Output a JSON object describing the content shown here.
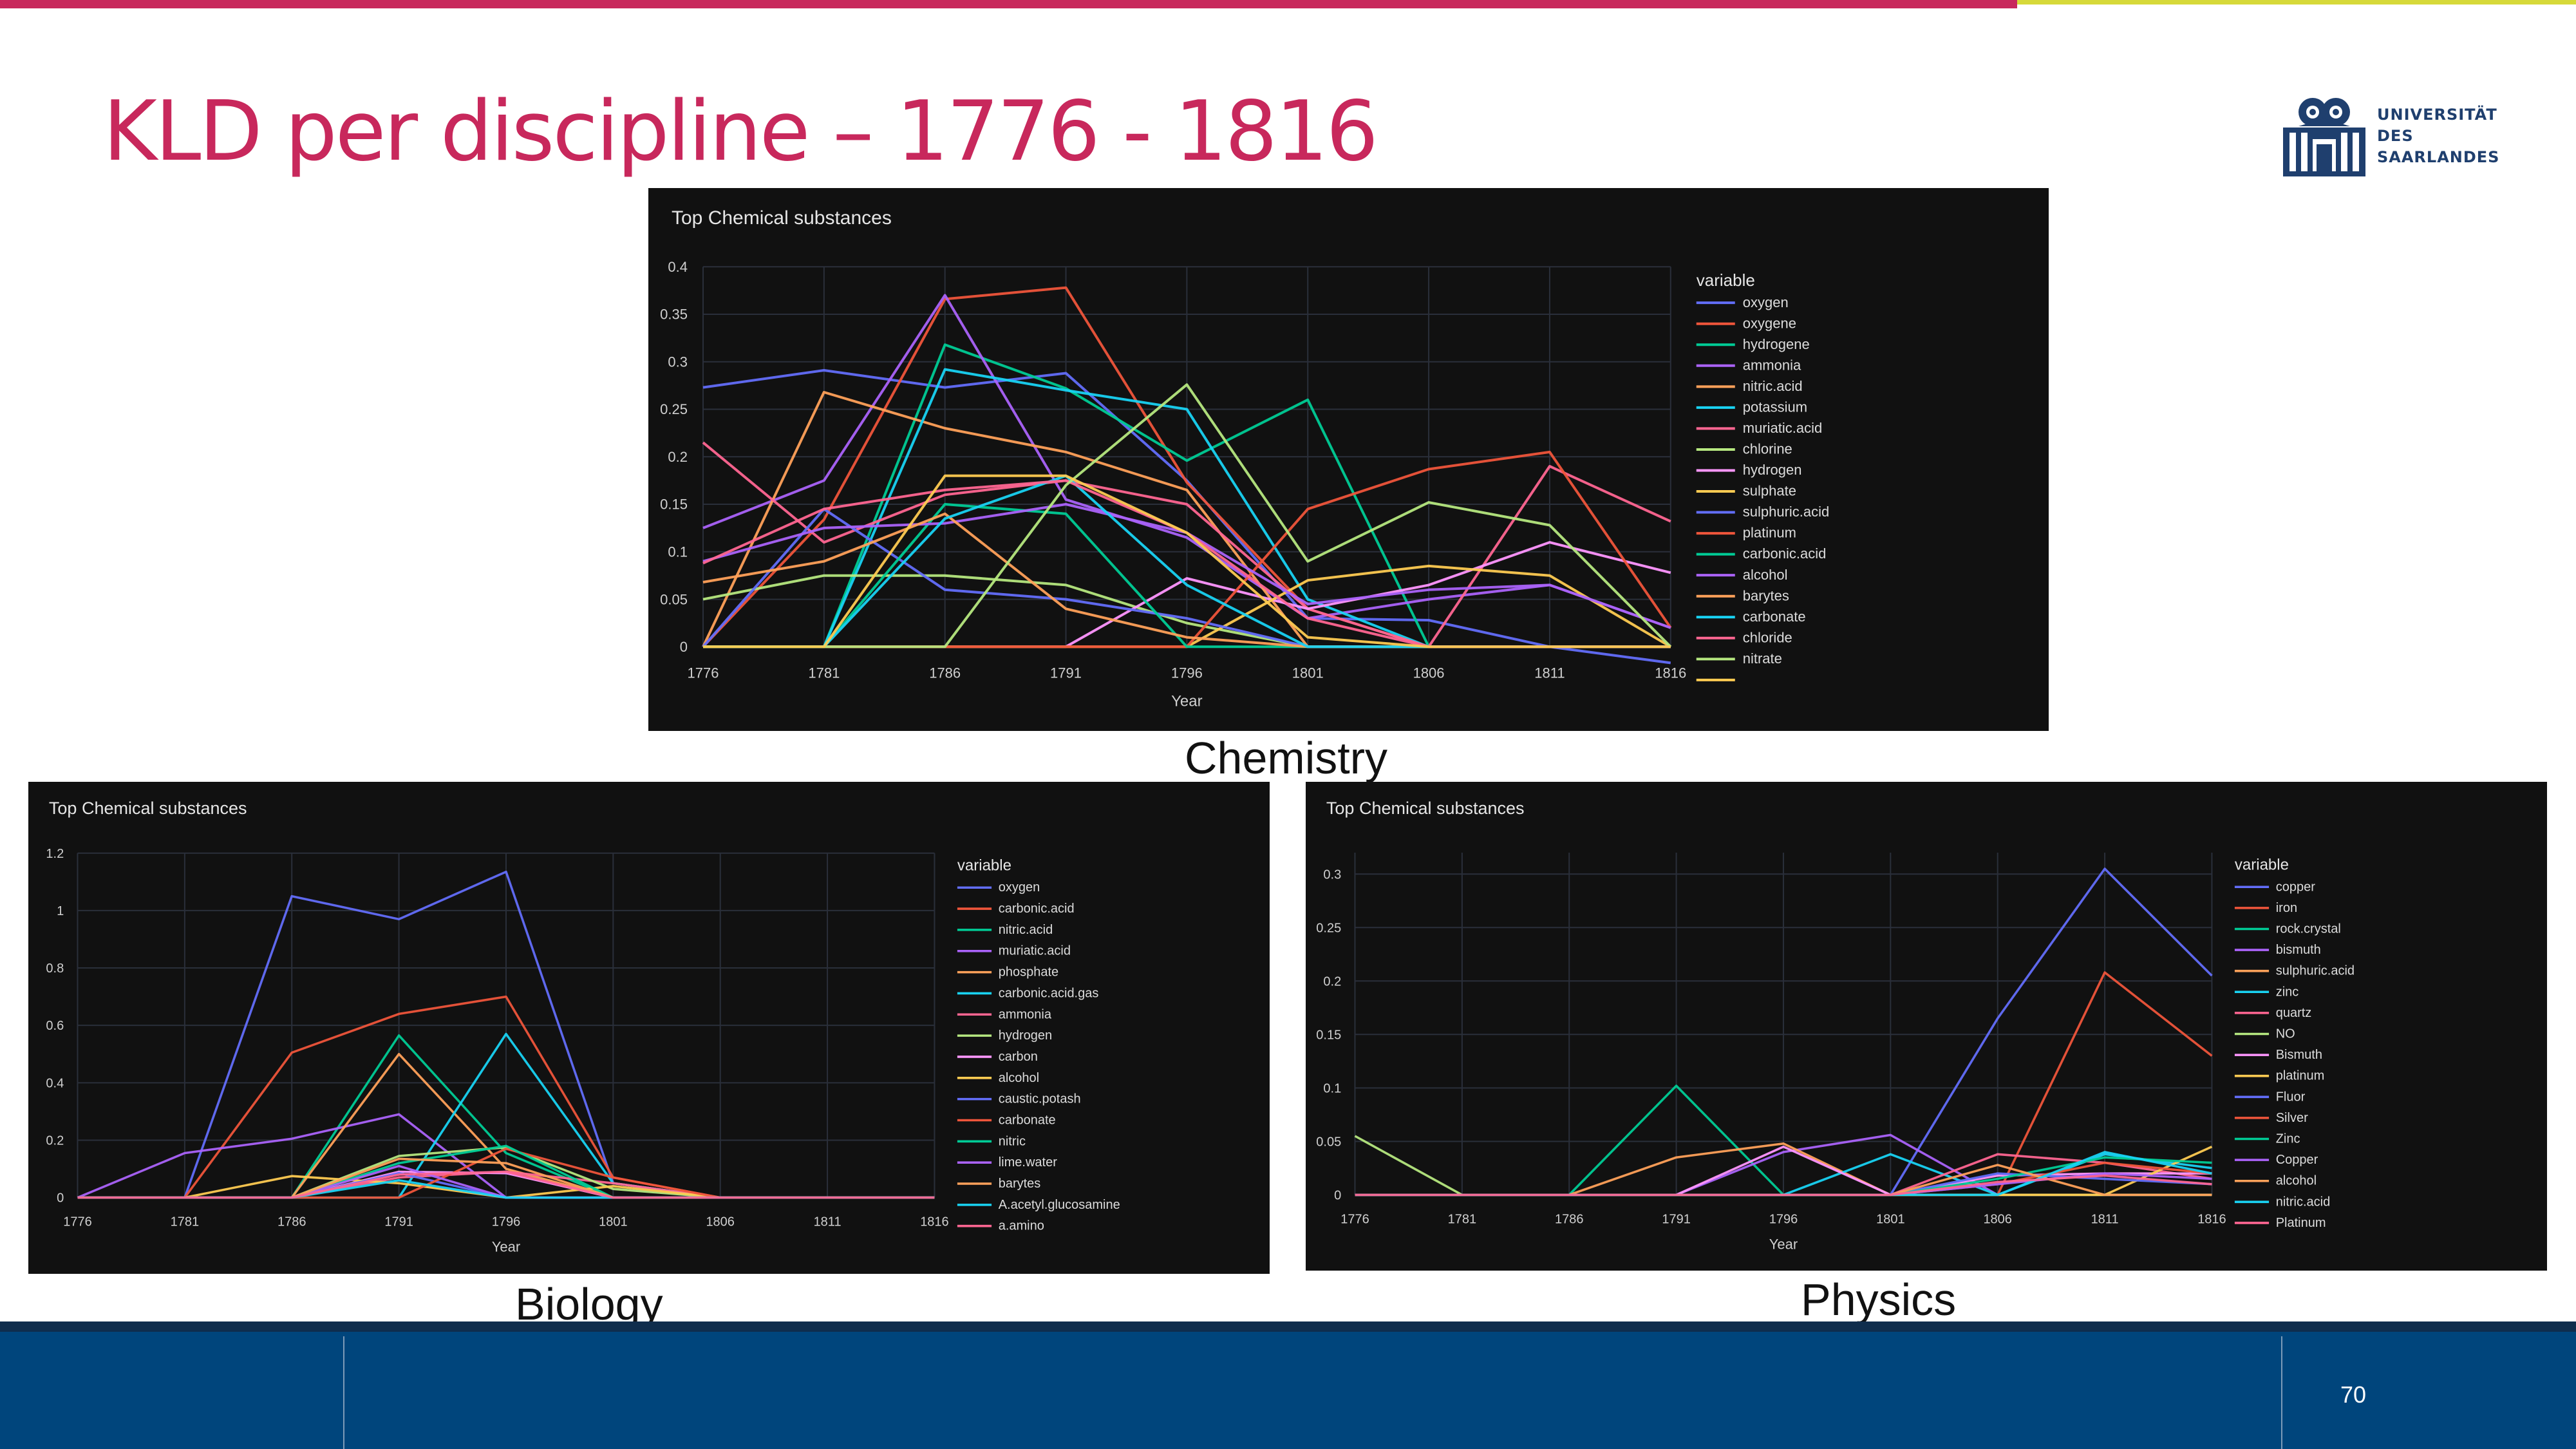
{
  "slide": {
    "title": "KLD per discipline – 1776 - 1816",
    "page_number": "70",
    "accent_color": "#c8285c",
    "secondary_accent_color": "#d6d93a",
    "footer_color": "#00457c"
  },
  "logo": {
    "lines": [
      "UNIVERSITÄT",
      "DES",
      "SAARLANDES"
    ],
    "icon": "saarland-university-seal-icon"
  },
  "captions": {
    "chemistry": "Chemistry",
    "biology": "Biology",
    "physics": "Physics"
  },
  "chart_data": [
    {
      "id": "chemistry",
      "type": "line",
      "title": "Top Chemical substances",
      "xlabel": "Year",
      "ylabel": "",
      "legend_title": "variable",
      "legend_position": "right",
      "grid": true,
      "x": [
        1776,
        1781,
        1786,
        1791,
        1796,
        1801,
        1806,
        1811,
        1816
      ],
      "xticks": [
        "1776",
        "1781",
        "1786",
        "1791",
        "1796",
        "1801",
        "1806",
        "1811",
        "1816"
      ],
      "ylim": [
        0,
        0.4
      ],
      "yticks": [
        0,
        0.05,
        0.1,
        0.15,
        0.2,
        0.25,
        0.3,
        0.35,
        0.4
      ],
      "ytick_labels": [
        "0",
        "0.05",
        "0.1",
        "0.15",
        "0.2",
        "0.25",
        "0.3",
        "0.35",
        "0.4"
      ],
      "series": [
        {
          "name": "oxygen",
          "color": "#636efa",
          "values": [
            0.273,
            0.291,
            0.273,
            0.288,
            0.175,
            0.03,
            0.028,
            0,
            -0.017
          ]
        },
        {
          "name": "oxygene",
          "color": "#ef553b",
          "values": [
            0,
            0.134,
            0.366,
            0.378,
            0.173,
            0.04,
            0,
            0,
            0
          ]
        },
        {
          "name": "hydrogene",
          "color": "#00cc96",
          "values": [
            0,
            0,
            0.318,
            0.272,
            0.196,
            0.26,
            0,
            0,
            0
          ]
        },
        {
          "name": "ammonia",
          "color": "#ab63fa",
          "values": [
            0.125,
            0.175,
            0.37,
            0.155,
            0.115,
            0.03,
            0.05,
            0.065,
            0.02
          ]
        },
        {
          "name": "nitric.acid",
          "color": "#ffa15a",
          "values": [
            0,
            0.268,
            0.23,
            0.205,
            0.165,
            0,
            0,
            0,
            0
          ]
        },
        {
          "name": "potassium",
          "color": "#19d3f3",
          "values": [
            0,
            0,
            0.292,
            0.27,
            0.25,
            0.05,
            0,
            0,
            0
          ]
        },
        {
          "name": "muriatic.acid",
          "color": "#ff6692",
          "values": [
            0.215,
            0.11,
            0.16,
            0.175,
            0.15,
            0.04,
            0,
            0.19,
            0.132
          ]
        },
        {
          "name": "chlorine",
          "color": "#b6e880",
          "values": [
            0.05,
            0.075,
            0.075,
            0.065,
            0.025,
            0,
            0,
            0,
            0
          ]
        },
        {
          "name": "hydrogen",
          "color": "#ff97ff",
          "values": [
            0,
            0,
            0,
            0,
            0.072,
            0.04,
            0.065,
            0.11,
            0.078
          ]
        },
        {
          "name": "sulphate",
          "color": "#fecb52",
          "values": [
            0,
            0,
            0,
            0,
            0,
            0.07,
            0.085,
            0.075,
            0
          ]
        },
        {
          "name": "sulphuric.acid",
          "color": "#636efa",
          "values": [
            0,
            0.145,
            0.06,
            0.05,
            0.03,
            0,
            0,
            0,
            0
          ]
        },
        {
          "name": "platinum",
          "color": "#ef553b",
          "values": [
            0,
            0,
            0,
            0,
            0,
            0.145,
            0.187,
            0.205,
            0.02
          ]
        },
        {
          "name": "carbonic.acid",
          "color": "#00cc96",
          "values": [
            0,
            0,
            0.15,
            0.14,
            0,
            0,
            0,
            0,
            0
          ]
        },
        {
          "name": "alcohol",
          "color": "#ab63fa",
          "values": [
            0.09,
            0.125,
            0.13,
            0.15,
            0.12,
            0.045,
            0.06,
            0.065,
            0.02
          ]
        },
        {
          "name": "barytes",
          "color": "#ffa15a",
          "values": [
            0.068,
            0.09,
            0.14,
            0.04,
            0.01,
            0,
            0,
            0,
            0
          ]
        },
        {
          "name": "carbonate",
          "color": "#19d3f3",
          "values": [
            0,
            0,
            0.135,
            0.18,
            0.065,
            0,
            0,
            0,
            0
          ]
        },
        {
          "name": "chloride",
          "color": "#ff6692",
          "values": [
            0.088,
            0.145,
            0.165,
            0.175,
            0.12,
            0.03,
            0,
            0,
            0
          ]
        },
        {
          "name": "nitrate",
          "color": "#b6e880",
          "values": [
            0,
            0,
            0,
            0.17,
            0.276,
            0.09,
            0.152,
            0.128,
            0
          ]
        },
        {
          "name": "",
          "color": "#fecb52",
          "values": [
            0,
            0,
            0.18,
            0.18,
            0.12,
            0.01,
            0,
            0,
            0
          ]
        }
      ]
    },
    {
      "id": "biology",
      "type": "line",
      "title": "Top Chemical substances",
      "xlabel": "Year",
      "ylabel": "",
      "legend_title": "variable",
      "legend_position": "right",
      "grid": true,
      "x": [
        1776,
        1781,
        1786,
        1791,
        1796,
        1801,
        1806,
        1811,
        1816
      ],
      "xticks": [
        "1776",
        "1781",
        "1786",
        "1791",
        "1796",
        "1801",
        "1806",
        "1811",
        "1816"
      ],
      "ylim": [
        0,
        1.2
      ],
      "yticks": [
        0,
        0.2,
        0.4,
        0.6,
        0.8,
        1,
        1.2
      ],
      "ytick_labels": [
        "0",
        "0.2",
        "0.4",
        "0.6",
        "0.8",
        "1",
        "1.2"
      ],
      "series": [
        {
          "name": "oxygen",
          "color": "#636efa",
          "values": [
            0,
            0,
            1.05,
            0.97,
            1.135,
            0.05,
            0,
            0,
            0
          ]
        },
        {
          "name": "carbonic.acid",
          "color": "#ef553b",
          "values": [
            0,
            0,
            0.505,
            0.64,
            0.7,
            0.07,
            0,
            0,
            0
          ]
        },
        {
          "name": "nitric.acid",
          "color": "#00cc96",
          "values": [
            0,
            0,
            0,
            0.565,
            0.155,
            0,
            0,
            0,
            0
          ]
        },
        {
          "name": "muriatic.acid",
          "color": "#ab63fa",
          "values": [
            0,
            0.155,
            0.205,
            0.29,
            0,
            0,
            0,
            0,
            0
          ]
        },
        {
          "name": "phosphate",
          "color": "#ffa15a",
          "values": [
            0,
            0,
            0,
            0.5,
            0.1,
            0,
            0,
            0,
            0
          ]
        },
        {
          "name": "carbonic.acid.gas",
          "color": "#19d3f3",
          "values": [
            0,
            0,
            0,
            0,
            0.57,
            0.05,
            0,
            0,
            0
          ]
        },
        {
          "name": "ammonia",
          "color": "#ff6692",
          "values": [
            0,
            0,
            0,
            0.07,
            0.09,
            0.05,
            0,
            0,
            0
          ]
        },
        {
          "name": "hydrogen",
          "color": "#b6e880",
          "values": [
            0,
            0,
            0,
            0.145,
            0.175,
            0.03,
            0,
            0,
            0
          ]
        },
        {
          "name": "carbon",
          "color": "#ff97ff",
          "values": [
            0,
            0,
            0,
            0.09,
            0.085,
            0,
            0,
            0,
            0
          ]
        },
        {
          "name": "alcohol",
          "color": "#fecb52",
          "values": [
            0,
            0,
            0.075,
            0.05,
            0,
            0.04,
            0,
            0,
            0
          ]
        },
        {
          "name": "caustic.potash",
          "color": "#636efa",
          "values": [
            0,
            0,
            0,
            0.085,
            0,
            0,
            0,
            0,
            0
          ]
        },
        {
          "name": "carbonate",
          "color": "#ef553b",
          "values": [
            0,
            0,
            0,
            0,
            0.17,
            0.07,
            0,
            0,
            0
          ]
        },
        {
          "name": "nitric",
          "color": "#00cc96",
          "values": [
            0,
            0,
            0,
            0.12,
            0.18,
            0,
            0,
            0,
            0
          ]
        },
        {
          "name": "lime.water",
          "color": "#ab63fa",
          "values": [
            0,
            0,
            0,
            0.11,
            0,
            0,
            0,
            0,
            0
          ]
        },
        {
          "name": "barytes",
          "color": "#ffa15a",
          "values": [
            0,
            0,
            0,
            0.135,
            0.12,
            0,
            0,
            0,
            0
          ]
        },
        {
          "name": "A.acetyl.glucosamine",
          "color": "#19d3f3",
          "values": [
            0,
            0,
            0,
            0.06,
            0,
            0,
            0,
            0,
            0
          ]
        },
        {
          "name": "a.amino",
          "color": "#ff6692",
          "values": [
            0,
            0,
            0,
            0.08,
            0.09,
            0,
            0,
            0,
            0
          ]
        }
      ]
    },
    {
      "id": "physics",
      "type": "line",
      "title": "Top Chemical substances",
      "xlabel": "Year",
      "ylabel": "",
      "legend_title": "variable",
      "legend_position": "right",
      "grid": true,
      "x": [
        1776,
        1781,
        1786,
        1791,
        1796,
        1801,
        1806,
        1811,
        1816
      ],
      "xticks": [
        "1776",
        "1781",
        "1786",
        "1791",
        "1796",
        "1801",
        "1806",
        "1811",
        "1816"
      ],
      "ylim": [
        0,
        0.32
      ],
      "yticks": [
        0,
        0.05,
        0.1,
        0.15,
        0.2,
        0.25,
        0.3
      ],
      "ytick_labels": [
        "0",
        "0.05",
        "0.1",
        "0.15",
        "0.2",
        "0.25",
        "0.3"
      ],
      "series": [
        {
          "name": "copper",
          "color": "#636efa",
          "values": [
            0,
            0,
            0,
            0,
            0,
            0,
            0.165,
            0.305,
            0.205
          ]
        },
        {
          "name": "iron",
          "color": "#ef553b",
          "values": [
            0,
            0,
            0,
            0,
            0,
            0,
            0,
            0.208,
            0.13
          ]
        },
        {
          "name": "rock.crystal",
          "color": "#00cc96",
          "values": [
            0,
            0,
            0,
            0.102,
            0,
            0,
            0,
            0,
            0
          ]
        },
        {
          "name": "bismuth",
          "color": "#ab63fa",
          "values": [
            0,
            0,
            0,
            0,
            0.04,
            0.056,
            0,
            0,
            0
          ]
        },
        {
          "name": "sulphuric.acid",
          "color": "#ffa15a",
          "values": [
            0,
            0,
            0,
            0.035,
            0.048,
            0,
            0,
            0,
            0
          ]
        },
        {
          "name": "zinc",
          "color": "#19d3f3",
          "values": [
            0,
            0,
            0,
            0,
            0,
            0.038,
            0,
            0.038,
            0.025
          ]
        },
        {
          "name": "quartz",
          "color": "#ff6692",
          "values": [
            0,
            0,
            0,
            0,
            0,
            0,
            0.038,
            0.03,
            0.015
          ]
        },
        {
          "name": "NO",
          "color": "#b6e880",
          "values": [
            0.055,
            0,
            0,
            0,
            0,
            0,
            0,
            0,
            0
          ]
        },
        {
          "name": "Bismuth",
          "color": "#ff97ff",
          "values": [
            0,
            0,
            0,
            0,
            0.045,
            0,
            0.018,
            0.02,
            0.02
          ]
        },
        {
          "name": "platinum",
          "color": "#fecb52",
          "values": [
            0,
            0,
            0,
            0,
            0,
            0,
            0,
            0,
            0.045
          ]
        },
        {
          "name": "Fluor",
          "color": "#636efa",
          "values": [
            0,
            0,
            0,
            0,
            0,
            0,
            0.02,
            0.015,
            0.01
          ]
        },
        {
          "name": "Silver",
          "color": "#ef553b",
          "values": [
            0,
            0,
            0,
            0,
            0,
            0,
            0.01,
            0.03,
            0.02
          ]
        },
        {
          "name": "Zinc",
          "color": "#00cc96",
          "values": [
            0,
            0,
            0,
            0,
            0,
            0,
            0.015,
            0.035,
            0.03
          ]
        },
        {
          "name": "Copper",
          "color": "#ab63fa",
          "values": [
            0,
            0,
            0,
            0,
            0,
            0,
            0.01,
            0.02,
            0.015
          ]
        },
        {
          "name": "alcohol",
          "color": "#ffa15a",
          "values": [
            0,
            0,
            0,
            0,
            0,
            0,
            0.028,
            0,
            0
          ]
        },
        {
          "name": "nitric.acid",
          "color": "#19d3f3",
          "values": [
            0,
            0,
            0,
            0,
            0,
            0,
            0,
            0.04,
            0.02
          ]
        },
        {
          "name": "Platinum",
          "color": "#ff6692",
          "values": [
            0,
            0,
            0,
            0,
            0,
            0,
            0.012,
            0.018,
            0.01
          ]
        }
      ]
    }
  ]
}
